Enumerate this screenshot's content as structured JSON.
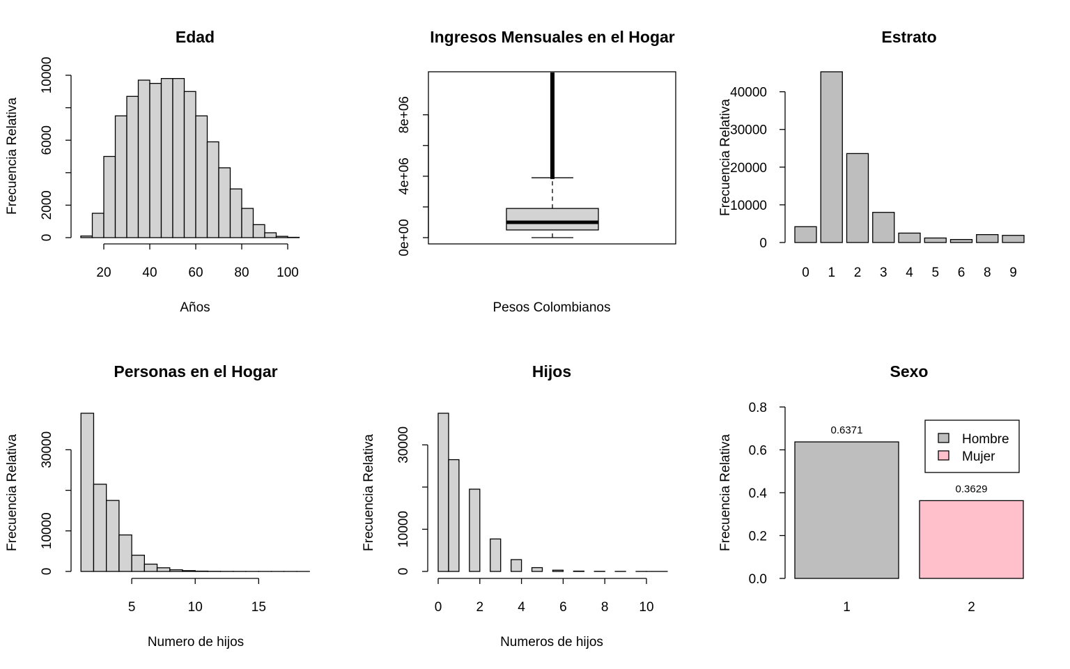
{
  "chart_data": [
    {
      "type": "histogram",
      "title": "Edad",
      "xlabel": "Años",
      "ylabel": "Frecuencia Relativa",
      "fill": "#d3d3d3",
      "bins": [
        {
          "x0": 10,
          "x1": 15,
          "value": 100
        },
        {
          "x0": 15,
          "x1": 20,
          "value": 1500
        },
        {
          "x0": 20,
          "x1": 25,
          "value": 5000
        },
        {
          "x0": 25,
          "x1": 30,
          "value": 7500
        },
        {
          "x0": 30,
          "x1": 35,
          "value": 8700
        },
        {
          "x0": 35,
          "x1": 40,
          "value": 9700
        },
        {
          "x0": 40,
          "x1": 45,
          "value": 9500
        },
        {
          "x0": 45,
          "x1": 50,
          "value": 9800
        },
        {
          "x0": 50,
          "x1": 55,
          "value": 9800
        },
        {
          "x0": 55,
          "x1": 60,
          "value": 9000
        },
        {
          "x0": 60,
          "x1": 65,
          "value": 7500
        },
        {
          "x0": 65,
          "x1": 70,
          "value": 5900
        },
        {
          "x0": 70,
          "x1": 75,
          "value": 4300
        },
        {
          "x0": 75,
          "x1": 80,
          "value": 3000
        },
        {
          "x0": 80,
          "x1": 85,
          "value": 1800
        },
        {
          "x0": 85,
          "x1": 90,
          "value": 800
        },
        {
          "x0": 90,
          "x1": 95,
          "value": 300
        },
        {
          "x0": 95,
          "x1": 100,
          "value": 80
        },
        {
          "x0": 100,
          "x1": 105,
          "value": 20
        }
      ],
      "xlim": [
        10,
        110
      ],
      "ylim": [
        0,
        10000
      ],
      "xticks": [
        20,
        40,
        60,
        80,
        100
      ],
      "yticks": [
        0,
        2000,
        6000,
        10000
      ],
      "yticks_minor": [
        4000,
        8000
      ]
    },
    {
      "type": "boxplot",
      "title": "Ingresos Mensuales en el Hogar",
      "xlabel": "Pesos Colombianos",
      "fill": "#d3d3d3",
      "min": 0,
      "q1": 500000,
      "median": 1000000,
      "q3": 1900000,
      "upper_whisker": 3900000,
      "outliers_from": 4000000,
      "outliers_to": 11000000,
      "ylim": [
        0,
        10800000
      ],
      "yticks": [
        0,
        4000000,
        8000000
      ],
      "ytick_labels": [
        "0e+00",
        "4e+06",
        "8e+06"
      ],
      "yticks_minor": [
        2000000,
        6000000
      ]
    },
    {
      "type": "bar",
      "title": "Estrato",
      "ylabel": "Frecuencia Relativa",
      "fill": "#bebebe",
      "categories": [
        "0",
        "1",
        "2",
        "3",
        "4",
        "5",
        "6",
        "8",
        "9"
      ],
      "values": [
        4200,
        45300,
        23600,
        8000,
        2500,
        1200,
        800,
        2100,
        1900
      ],
      "ylim": [
        0,
        45300
      ],
      "yticks": [
        0,
        10000,
        20000,
        30000,
        40000
      ],
      "ytick_labels": [
        "0",
        "10000",
        "20000",
        "30000",
        "40000"
      ]
    },
    {
      "type": "histogram",
      "title": "Personas en el Hogar",
      "xlabel": "Numero de hijos",
      "ylabel": "Frecuencia Relativa",
      "fill": "#d3d3d3",
      "bins": [
        {
          "x0": 0,
          "x1": 1,
          "value": 39000
        },
        {
          "x0": 1,
          "x1": 2,
          "value": 21500
        },
        {
          "x0": 2,
          "x1": 3,
          "value": 17500
        },
        {
          "x0": 3,
          "x1": 4,
          "value": 9000
        },
        {
          "x0": 4,
          "x1": 5,
          "value": 4000
        },
        {
          "x0": 5,
          "x1": 6,
          "value": 1800
        },
        {
          "x0": 6,
          "x1": 7,
          "value": 900
        },
        {
          "x0": 7,
          "x1": 8,
          "value": 400
        },
        {
          "x0": 8,
          "x1": 9,
          "value": 200
        },
        {
          "x0": 9,
          "x1": 10,
          "value": 80
        },
        {
          "x0": 10,
          "x1": 11,
          "value": 30
        },
        {
          "x0": 11,
          "x1": 12,
          "value": 15
        },
        {
          "x0": 12,
          "x1": 13,
          "value": 10
        },
        {
          "x0": 13,
          "x1": 14,
          "value": 5
        },
        {
          "x0": 14,
          "x1": 15,
          "value": 5
        },
        {
          "x0": 15,
          "x1": 16,
          "value": 3
        },
        {
          "x0": 16,
          "x1": 17,
          "value": 2
        },
        {
          "x0": 17,
          "x1": 18,
          "value": 1
        }
      ],
      "xlim": [
        0,
        18
      ],
      "ylim": [
        0,
        39000
      ],
      "xticks": [
        5,
        10,
        15
      ],
      "yticks": [
        0,
        10000,
        30000
      ],
      "yticks_minor": [
        20000
      ]
    },
    {
      "type": "histogram",
      "title": "Hijos",
      "xlabel": "Numeros de hijos",
      "ylabel": "Frecuencia Relativa",
      "fill": "#d3d3d3",
      "bins": [
        {
          "x0": 0,
          "x1": 0.5,
          "value": 37500
        },
        {
          "x0": 0.5,
          "x1": 1,
          "value": 26500
        },
        {
          "x0": 1.5,
          "x1": 2,
          "value": 19500
        },
        {
          "x0": 2.5,
          "x1": 3,
          "value": 7700
        },
        {
          "x0": 3.5,
          "x1": 4,
          "value": 2800
        },
        {
          "x0": 4.5,
          "x1": 5,
          "value": 900
        },
        {
          "x0": 5.5,
          "x1": 6,
          "value": 300
        },
        {
          "x0": 6.5,
          "x1": 7,
          "value": 80
        },
        {
          "x0": 7.5,
          "x1": 8,
          "value": 30
        },
        {
          "x0": 8.5,
          "x1": 9,
          "value": 15
        },
        {
          "x0": 9.5,
          "x1": 10,
          "value": 8
        },
        {
          "x0": 10,
          "x1": 11,
          "value": 3
        }
      ],
      "xlim": [
        0,
        11
      ],
      "ylim": [
        0,
        37500
      ],
      "xticks": [
        0,
        2,
        4,
        6,
        8,
        10
      ],
      "yticks": [
        0,
        10000,
        30000
      ],
      "yticks_minor": [
        20000
      ]
    },
    {
      "type": "bar",
      "title": "Sexo",
      "ylabel": "Frecuencia Relativa",
      "categories": [
        "1",
        "2"
      ],
      "values": [
        0.6371,
        0.3629
      ],
      "value_labels": [
        "0.6371",
        "0.3629"
      ],
      "colors": [
        "#bebebe",
        "#ffc0cb"
      ],
      "ylim": [
        0,
        0.8
      ],
      "yticks": [
        0,
        0.2,
        0.4,
        0.6,
        0.8
      ],
      "ytick_labels": [
        "0.0",
        "0.2",
        "0.4",
        "0.6",
        "0.8"
      ],
      "legend": {
        "placement": "top-right",
        "entries": [
          {
            "label": "Hombre",
            "color": "#bebebe"
          },
          {
            "label": "Mujer",
            "color": "#ffc0cb"
          }
        ]
      }
    }
  ]
}
